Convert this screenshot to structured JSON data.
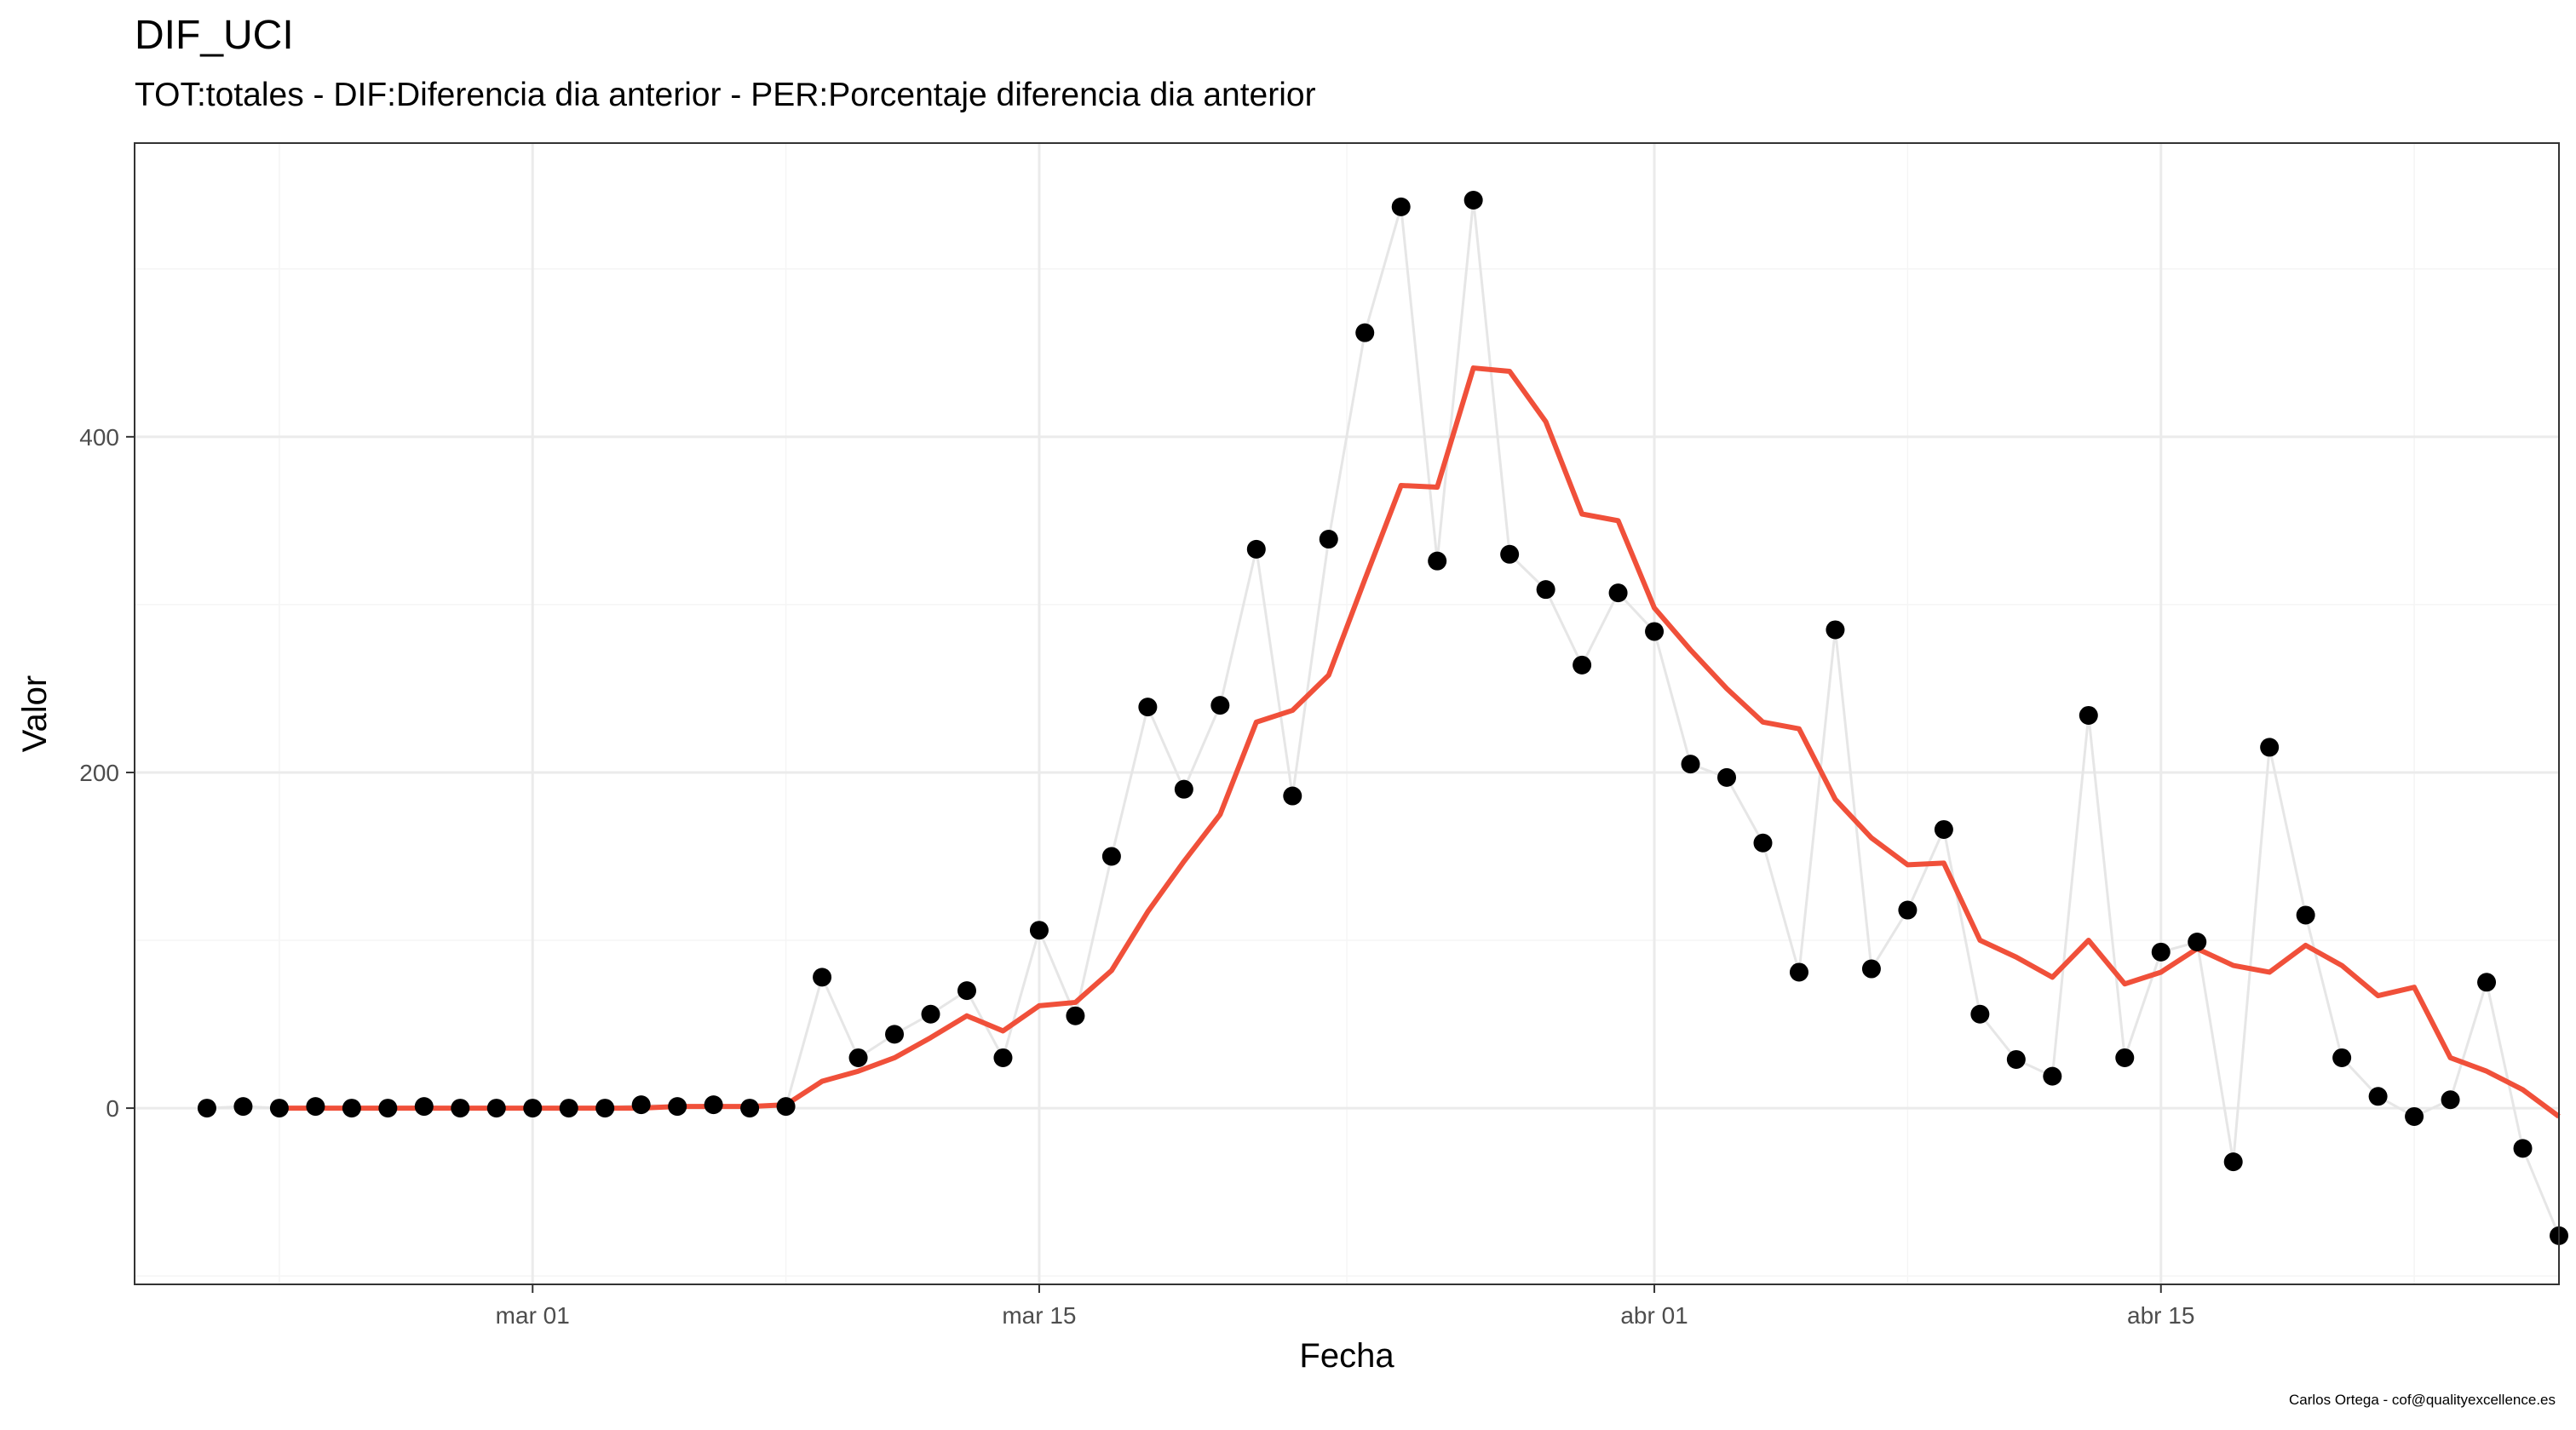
{
  "title": "DIF_UCI",
  "subtitle": "TOT:totales - DIF:Diferencia dia anterior - PER:Porcentaje diferencia dia anterior",
  "credit": "Carlos Ortega - cof@qualityexcellence.es",
  "colors": {
    "points": "#000000",
    "raw_line": "#e6e6e6",
    "smooth_line": "#f0503a",
    "grid_major": "#ebebeb",
    "grid_minor": "#f5f5f5",
    "panel_border": "#333333"
  },
  "chart_data": {
    "type": "line",
    "xlabel": "Fecha",
    "ylabel": "Valor",
    "x_ticks": [
      {
        "date": "2020-03-01",
        "label": "mar 01"
      },
      {
        "date": "2020-03-15",
        "label": "mar 15"
      },
      {
        "date": "2020-04-01",
        "label": "abr 01"
      },
      {
        "date": "2020-04-15",
        "label": "abr 15"
      }
    ],
    "x_range": [
      "2020-02-19",
      "2020-04-26"
    ],
    "y_ticks": [
      0,
      200,
      400
    ],
    "ylim": [
      -105,
      575
    ],
    "grid": true,
    "series": [
      {
        "type": "scatter+line",
        "start_date": "2020-02-21",
        "values": [
          0,
          1,
          0,
          1,
          0,
          0,
          1,
          0,
          0,
          0,
          0,
          0,
          2,
          1,
          2,
          0,
          1,
          78,
          30,
          44,
          56,
          70,
          30,
          106,
          55,
          150,
          239,
          190,
          240,
          333,
          186,
          339,
          462,
          537,
          326,
          541,
          330,
          309,
          264,
          307,
          284,
          205,
          197,
          158,
          81,
          285,
          83,
          118,
          166,
          56,
          29,
          19,
          234,
          30,
          93,
          99,
          -32,
          215,
          115,
          30,
          7,
          -5,
          5,
          75,
          -24,
          -76
        ]
      },
      {
        "type": "line",
        "smoothed": true,
        "start_date": "2020-02-23",
        "values": [
          0,
          0,
          0,
          0,
          0,
          0,
          0,
          0,
          0,
          0,
          0,
          1,
          1,
          1,
          2,
          16,
          22,
          30,
          42,
          55,
          46,
          61,
          63,
          82,
          117,
          147,
          175,
          230,
          237,
          258,
          315,
          371,
          370,
          441,
          439,
          409,
          354,
          350,
          298,
          273,
          250,
          230,
          226,
          184,
          161,
          145,
          146,
          100,
          90,
          78,
          100,
          74,
          81,
          95,
          85,
          81,
          97,
          85,
          67,
          72,
          30,
          22,
          11,
          -5
        ]
      }
    ]
  }
}
